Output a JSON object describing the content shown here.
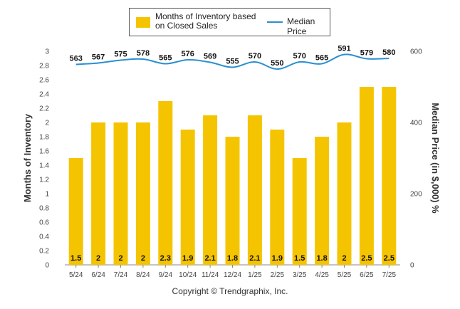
{
  "chart_data": {
    "type": "bar",
    "categories": [
      "5/24",
      "6/24",
      "7/24",
      "8/24",
      "9/24",
      "10/24",
      "11/24",
      "12/24",
      "1/25",
      "2/25",
      "3/25",
      "4/25",
      "5/25",
      "6/25",
      "7/25"
    ],
    "series": [
      {
        "name": "Months of Inventory based on Closed Sales",
        "type": "bar",
        "axis": "left",
        "values": [
          1.5,
          2,
          2,
          2,
          2.3,
          1.9,
          2.1,
          1.8,
          2.1,
          1.9,
          1.5,
          1.8,
          2,
          2.5,
          2.5
        ],
        "labels": [
          "1.5",
          "2",
          "2",
          "2",
          "2.3",
          "1.9",
          "2.1",
          "1.8",
          "2.1",
          "1.9",
          "1.5",
          "1.8",
          "2",
          "2.5",
          "2.5"
        ],
        "color": "#f5c400"
      },
      {
        "name": "Median Price",
        "type": "line",
        "axis": "right",
        "values": [
          563,
          567,
          575,
          578,
          565,
          576,
          569,
          555,
          570,
          550,
          570,
          565,
          591,
          579,
          580
        ],
        "color": "#2a8fd1"
      }
    ],
    "ylabel": "Months of Inventory",
    "y2label": "Median Price (in $,000) %",
    "ylim": [
      0,
      3
    ],
    "y2lim": [
      0,
      600
    ],
    "yticks": [
      "0",
      "0.2",
      "0.4",
      "0.6",
      "0.8",
      "1",
      "1.2",
      "1.4",
      "1.6",
      "1.8",
      "2",
      "2.2",
      "2.4",
      "2.6",
      "2.8",
      "3"
    ],
    "y2ticks": [
      "0",
      "200",
      "400",
      "600"
    ],
    "grid": false,
    "legend_placement": "top-center"
  },
  "legend": {
    "bar_label": "Months of Inventory based on Closed Sales",
    "line_label": "Median Price"
  },
  "footer": {
    "copyright": "Copyright © Trendgraphix, Inc."
  }
}
